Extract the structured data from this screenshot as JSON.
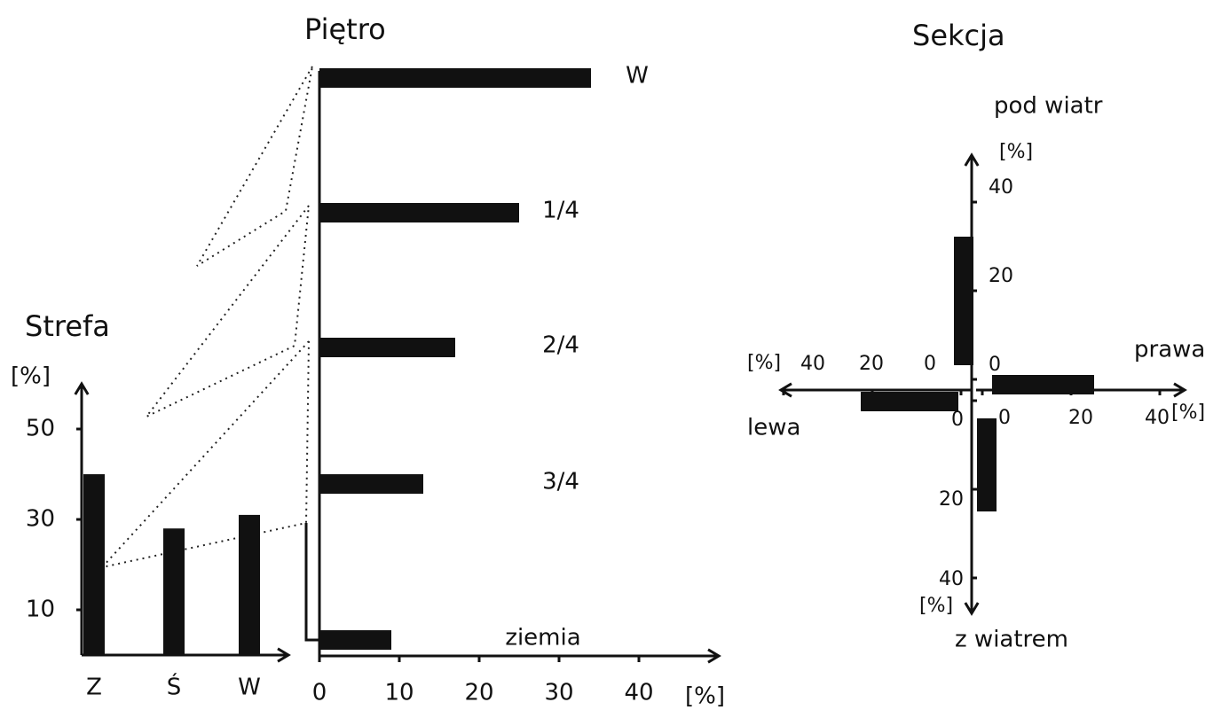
{
  "chart_data": [
    {
      "type": "bar",
      "title": "Strefa",
      "ylabel": "[%]",
      "categories": [
        "Z",
        "Ś",
        "W"
      ],
      "values": [
        40,
        28,
        31
      ],
      "color": "#111111",
      "ylim": [
        0,
        60
      ],
      "yticks": [
        10,
        30,
        50
      ]
    },
    {
      "type": "hbar",
      "title": "Piętro",
      "xlabel": "[%]",
      "categories": [
        "W",
        "1/4",
        "2/4",
        "3/4",
        "ziemia"
      ],
      "values": [
        34,
        25,
        17,
        13,
        9
      ],
      "color": "#111111",
      "xlim": [
        0,
        50
      ],
      "xticks": [
        0,
        10,
        20,
        30,
        40
      ]
    },
    {
      "type": "cross",
      "title": "Sekcja",
      "unit": "[%]",
      "categories": [
        "pod wiatr",
        "prawa",
        "z wiatrem",
        "lewa"
      ],
      "values": [
        29,
        23,
        21,
        22
      ],
      "color": "#111111",
      "lim": [
        0,
        50
      ],
      "ticks": [
        0,
        20,
        40
      ]
    }
  ]
}
